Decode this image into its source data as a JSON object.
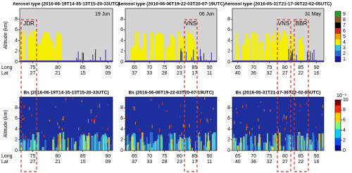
{
  "y_axis_label": "Altitude (km)",
  "y_ticks": [
    0,
    2,
    4,
    6,
    8
  ],
  "long_label": "Long",
  "lat_label": "Lat",
  "top_row": {
    "panels": [
      {
        "title": "Aerosol type (2016-06-19T14-35-13T15-20-33UTC)",
        "date": "19 Jun",
        "annotations": [
          "JDR"
        ],
        "long": [
          75,
          80,
          85,
          90
        ],
        "lat": [
          "27",
          "21",
          "15",
          "09"
        ]
      },
      {
        "title": "Aerosol type (2016-06-06T19-22-03T20-07-19UTC)",
        "date": "06 Jun",
        "annotations": [
          "VNS"
        ],
        "long": [
          65,
          70,
          75,
          80,
          85,
          90
        ],
        "lat": [
          "37",
          "33",
          "28",
          "23",
          "17",
          "11"
        ]
      },
      {
        "title": "Aerosol type (2016-05-31T21-17-36T22-02-05UTC)",
        "date": "31 May",
        "annotations": [
          "VNS",
          "BBR"
        ],
        "long": [
          65,
          70,
          75,
          80,
          85,
          90
        ],
        "lat": [
          "40",
          "36",
          "32",
          "27",
          "22",
          "16"
        ]
      }
    ],
    "colorbar_ticks": [
      1,
      2,
      3,
      4,
      5,
      6,
      7,
      8,
      9
    ]
  },
  "bottom_row": {
    "panels": [
      {
        "title": "Bs (2016-06-19T14-35-13T15-20-33UTC)",
        "long": [
          75,
          80,
          85,
          90
        ],
        "lat": [
          "27",
          "21",
          "15",
          "09"
        ]
      },
      {
        "title": "Bs (2016-06-06T19-22-03T20-07-19UTC)",
        "long": [
          65,
          70,
          75,
          80,
          85,
          90
        ],
        "lat": [
          "37",
          "33",
          "28",
          "23",
          "17",
          "11"
        ]
      },
      {
        "title": "Bs (2016-05-31T21-17-36T22-02-05UTC)",
        "long": [
          65,
          70,
          75,
          80,
          85,
          90
        ],
        "lat": [
          "40",
          "36",
          "32",
          "27",
          "22",
          "16"
        ]
      }
    ],
    "colorbar_ticks": [
      0,
      2,
      4,
      6,
      8,
      10
    ],
    "colorbar_exponent": "10⁻³"
  }
}
